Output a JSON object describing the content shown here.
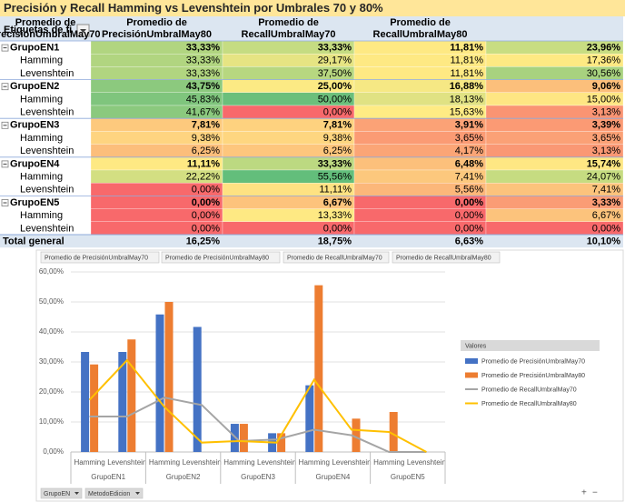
{
  "title": "Precisión y Recall Hamming vs Levenshtein por Umbrales 70 y 80%",
  "table": {
    "corner": "Etiquetas de fi",
    "columns": [
      [
        "Promedio de",
        "PrecisiónUmbralMay70"
      ],
      [
        "Promedio de",
        "PrecisiónUmbralMay80"
      ],
      [
        "Promedio de",
        "RecallUmbralMay70"
      ],
      [
        "Promedio de",
        "RecallUmbralMay80"
      ]
    ],
    "groups": [
      {
        "label": "GrupoEN1",
        "cells": [
          "33,33%",
          "33,33%",
          "11,81%",
          "23,96%"
        ],
        "colors": [
          "#b1d580",
          "#c5dc82",
          "#fee983",
          "#c8dd82"
        ],
        "children": [
          {
            "label": "Hamming",
            "cells": [
              "33,33%",
              "29,17%",
              "11,81%",
              "17,36%"
            ],
            "colors": [
              "#b1d580",
              "#e6e483",
              "#fee983",
              "#fee983"
            ]
          },
          {
            "label": "Levenshtein",
            "cells": [
              "33,33%",
              "37,50%",
              "11,81%",
              "30,56%"
            ],
            "colors": [
              "#b1d580",
              "#b7d780",
              "#fee983",
              "#a8d27f"
            ]
          }
        ]
      },
      {
        "label": "GrupoEN2",
        "cells": [
          "43,75%",
          "25,00%",
          "16,88%",
          "9,06%"
        ],
        "colors": [
          "#8cc97e",
          "#fcea84",
          "#f6e884",
          "#fcbf7b"
        ],
        "children": [
          {
            "label": "Hamming",
            "cells": [
              "45,83%",
              "50,00%",
              "18,13%",
              "15,00%"
            ],
            "colors": [
              "#7fc57d",
              "#6bbf7b",
              "#e0e283",
              "#fee683"
            ]
          },
          {
            "label": "Levenshtein",
            "cells": [
              "41,67%",
              "0,00%",
              "15,63%",
              "3,13%"
            ],
            "colors": [
              "#8bc97e",
              "#f8696b",
              "#ffeb84",
              "#fa9473"
            ]
          }
        ]
      },
      {
        "label": "GrupoEN3",
        "cells": [
          "7,81%",
          "7,81%",
          "3,91%",
          "3,39%"
        ],
        "colors": [
          "#fdc97d",
          "#fed27f",
          "#fba276",
          "#fb9a74"
        ],
        "children": [
          {
            "label": "Hamming",
            "cells": [
              "9,38%",
              "9,38%",
              "3,65%",
              "3,65%"
            ],
            "colors": [
              "#fed480",
              "#fed680",
              "#fb9b74",
              "#fba176"
            ]
          },
          {
            "label": "Levenshtein",
            "cells": [
              "6,25%",
              "6,25%",
              "4,17%",
              "3,13%"
            ],
            "colors": [
              "#fcbe7b",
              "#fdc67d",
              "#fba576",
              "#fa9874"
            ]
          }
        ]
      },
      {
        "label": "GrupoEN4",
        "cells": [
          "11,11%",
          "33,33%",
          "6,48%",
          "15,74%"
        ],
        "colors": [
          "#fee983",
          "#bcd981",
          "#fcc07b",
          "#fee783"
        ],
        "children": [
          {
            "label": "Hamming",
            "cells": [
              "22,22%",
              "55,56%",
              "7,41%",
              "24,07%"
            ],
            "colors": [
              "#d3df82",
              "#63be7b",
              "#fcc87d",
              "#c6dc81"
            ]
          },
          {
            "label": "Levenshtein",
            "cells": [
              "0,00%",
              "11,11%",
              "5,56%",
              "7,41%"
            ],
            "colors": [
              "#f8696b",
              "#fee282",
              "#fcb77a",
              "#fcc37c"
            ]
          }
        ]
      },
      {
        "label": "GrupoEN5",
        "cells": [
          "0,00%",
          "6,67%",
          "0,00%",
          "3,33%"
        ],
        "colors": [
          "#f8696b",
          "#fdc37c",
          "#f8696b",
          "#fa9c75"
        ],
        "children": [
          {
            "label": "Hamming",
            "cells": [
              "0,00%",
              "13,33%",
              "0,00%",
              "6,67%"
            ],
            "colors": [
              "#f8696b",
              "#fee983",
              "#f8696b",
              "#fcc37c"
            ]
          },
          {
            "label": "Levenshtein",
            "cells": [
              "0,00%",
              "0,00%",
              "0,00%",
              "0,00%"
            ],
            "colors": [
              "#f8696b",
              "#f8696b",
              "#f8696b",
              "#f8696b"
            ]
          }
        ]
      }
    ],
    "total": {
      "label": "Total general",
      "cells": [
        "16,25%",
        "18,75%",
        "6,63%",
        "10,10%"
      ]
    }
  },
  "chart_data": {
    "type": "combo",
    "categories": [
      "Hamming",
      "Levenshtein",
      "Hamming",
      "Levenshtein",
      "Hamming",
      "Levenshtein",
      "Hamming",
      "Levenshtein",
      "Hamming",
      "Levenshtein"
    ],
    "groups": [
      "GrupoEN1",
      "GrupoEN2",
      "GrupoEN3",
      "GrupoEN4",
      "GrupoEN5"
    ],
    "series": [
      {
        "name": "Promedio de PrecisiónUmbralMay70",
        "type": "bar",
        "color": "#4472c4",
        "values": [
          33.33,
          33.33,
          45.83,
          41.67,
          9.38,
          6.25,
          22.22,
          0,
          0,
          0
        ]
      },
      {
        "name": "Promedio de PrecisiónUmbralMay80",
        "type": "bar",
        "color": "#ed7d31",
        "values": [
          29.17,
          37.5,
          50,
          0,
          9.38,
          6.25,
          55.56,
          11.11,
          13.33,
          0
        ]
      },
      {
        "name": "Promedio de RecallUmbralMay70",
        "type": "line",
        "color": "#a5a5a5",
        "values": [
          11.81,
          11.81,
          18.13,
          15.63,
          3.65,
          4.17,
          7.41,
          5.56,
          0,
          0
        ]
      },
      {
        "name": "Promedio de RecallUmbralMay80",
        "type": "line",
        "color": "#ffc000",
        "values": [
          17.36,
          30.56,
          15,
          3.13,
          3.65,
          3.13,
          24.07,
          7.41,
          6.67,
          0
        ]
      }
    ],
    "ylim": [
      0,
      60
    ],
    "yticks": [
      {
        "value": 0,
        "label": "0,00%"
      },
      {
        "value": 10,
        "label": "10,00%"
      },
      {
        "value": 20,
        "label": "20,00%"
      },
      {
        "value": 30,
        "label": "30,00%"
      },
      {
        "value": 40,
        "label": "40,00%"
      },
      {
        "value": 50,
        "label": "50,00%"
      },
      {
        "value": 60,
        "label": "60,00%"
      }
    ],
    "grid": true,
    "legend_title": "Valores",
    "axis_fields": [
      "GrupoEN",
      "MetodoEdicion"
    ]
  }
}
